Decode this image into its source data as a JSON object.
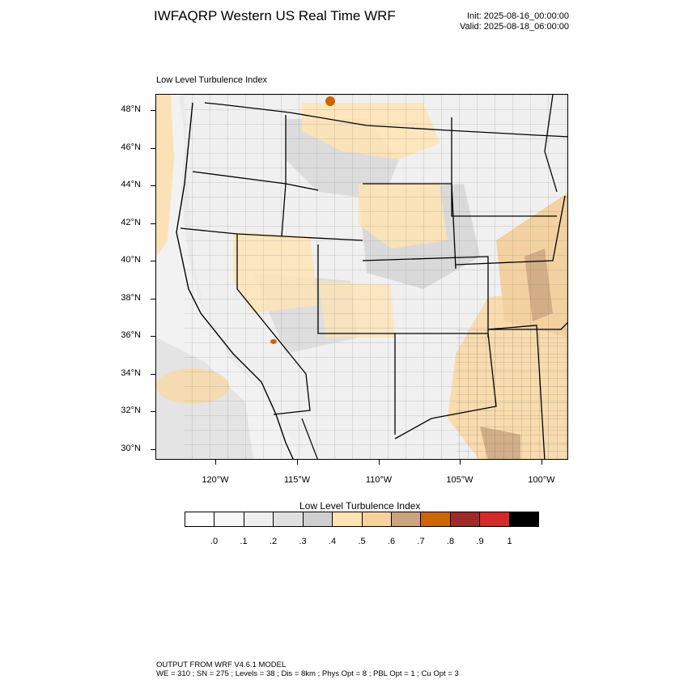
{
  "header": {
    "title": "IWFAQRP Western US Real Time WRF",
    "init": "Init: 2025-08-16_00:00:00",
    "valid": "Valid: 2025-08-18_06:00:00"
  },
  "map": {
    "subtitle": "Low Level Turbulence Index",
    "lat_labels": [
      "48°N",
      "46°N",
      "44°N",
      "42°N",
      "40°N",
      "38°N",
      "36°N",
      "34°N",
      "32°N",
      "30°N"
    ],
    "lon_labels": [
      "120°W",
      "115°W",
      "110°W",
      "105°W",
      "100°W"
    ]
  },
  "legend": {
    "title": "Low Level Turbulence Index",
    "labels": [
      ".0",
      ".1",
      ".2",
      ".3",
      ".4",
      ".5",
      ".6",
      ".7",
      ".8",
      ".9",
      "1"
    ],
    "colors": [
      "#ffffff",
      "#f7f7f7",
      "#efefef",
      "#e0e0e0",
      "#cfcfcf",
      "#ffe3b3",
      "#f6d19e",
      "#c9a47e",
      "#cc6600",
      "#a02a2a",
      "#d42a2a",
      "#000000"
    ]
  },
  "footer": {
    "line1": "OUTPUT FROM WRF V4.6.1 MODEL",
    "line2": "WE = 310 ; SN = 275 ; Levels = 38 ; Dis = 8km ; Phys Opt = 8 ; PBL Opt = 1 ; Cu Opt = 3"
  }
}
